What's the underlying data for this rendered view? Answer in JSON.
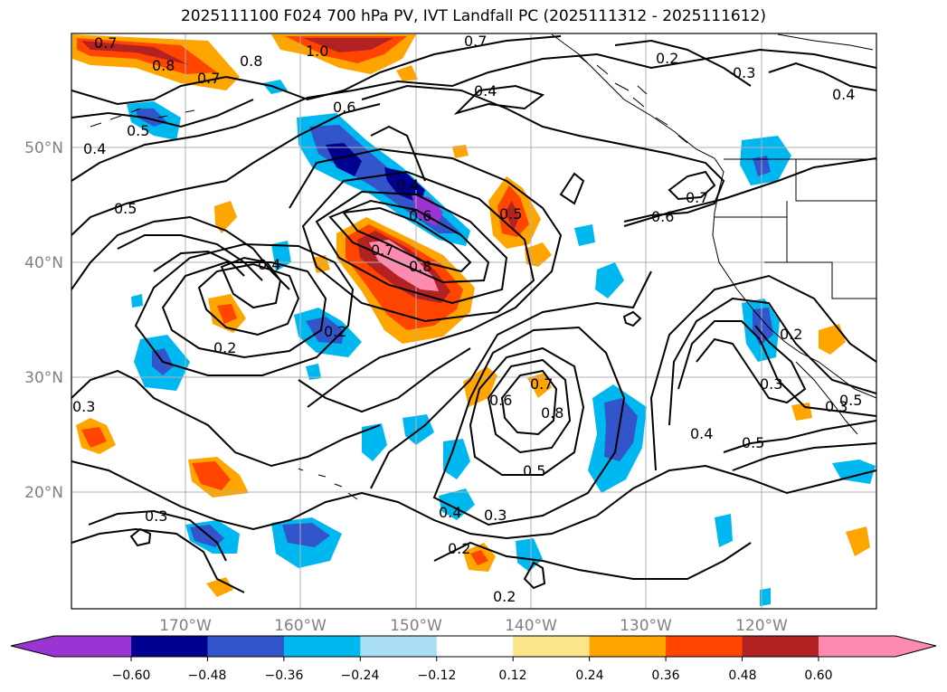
{
  "title": "2025111100 F024 700 hPa PV, IVT Landfall PC (2025111312 - 2025111612)",
  "map": {
    "lat_labels": [
      "50°N",
      "40°N",
      "30°N",
      "20°N"
    ],
    "lon_labels": [
      "170°W",
      "160°W",
      "150°W",
      "140°W",
      "130°W",
      "120°W"
    ],
    "contour_labels": [
      "0.7",
      "1.0",
      "0.7",
      "0.2",
      "0.3",
      "0.4",
      "0.8",
      "0.7",
      "0.8",
      "0.4",
      "0.6",
      "0.5",
      "0.4",
      "0.5",
      "0.4",
      "0.6",
      "0.5",
      "0.7",
      "0.6",
      "0.7",
      "0.8",
      "0.4",
      "0.2",
      "0.2",
      "0.3",
      "0.2",
      "0.3",
      "0.6",
      "0.7",
      "0.8",
      "0.5",
      "0.4",
      "0.3",
      "0.2",
      "0.2",
      "0.3",
      "0.4",
      "0.5",
      "0.3",
      "0.5"
    ]
  },
  "colorbar": {
    "ticks": [
      "−0.60",
      "−0.48",
      "−0.36",
      "−0.24",
      "−0.12",
      "0.12",
      "0.24",
      "0.36",
      "0.48",
      "0.60"
    ],
    "colors": [
      "#9a35d4",
      "#000090",
      "#3355cc",
      "#00b8f0",
      "#a8ddf5",
      "#ffffff",
      "#fde68a",
      "#ffa500",
      "#ff4500",
      "#b22222",
      "#ff8ab0"
    ]
  }
}
